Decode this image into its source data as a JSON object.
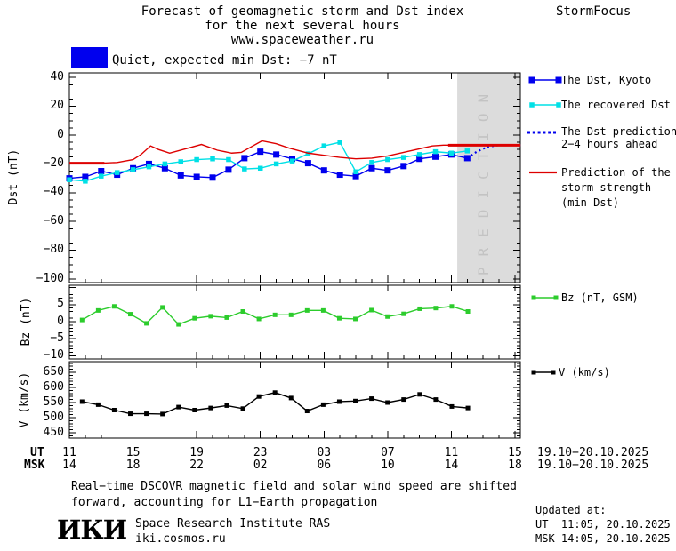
{
  "header": {
    "title_line1": "Forecast of geomagnetic storm and Dst index",
    "title_line2": "for the next several hours",
    "title_line3": "www.spaceweather.ru",
    "brand": "StormFocus"
  },
  "status": {
    "label": "Quiet, expected min Dst: −7 nT",
    "box_color": "#0000ee"
  },
  "colors": {
    "kyoto_blue": "#0000ee",
    "recovered_cyan": "#00e0e6",
    "prediction_red": "#dd0000",
    "bz_green": "#2ccc2c",
    "v_black": "#000000",
    "band_gray": "#dcdcdc",
    "band_text_gray": "#c3c3c3"
  },
  "legend_main": {
    "items": [
      {
        "label": "The Dst, Kyoto",
        "color": "#0000ee",
        "style": "line-squares"
      },
      {
        "label": "The recovered Dst",
        "color": "#00e0e6",
        "style": "line-squares"
      },
      {
        "label": "The Dst prediction",
        "label2": "2−4 hours ahead",
        "color": "#0000ee",
        "style": "dotted"
      },
      {
        "label": "Prediction of the",
        "label2": "storm strength",
        "label3": "(min Dst)",
        "color": "#dd0000",
        "style": "line"
      }
    ]
  },
  "xaxis": {
    "ut_label": "UT",
    "msk_label": "MSK",
    "tick_hours": [
      0,
      4,
      8,
      12,
      16,
      20,
      24,
      28
    ],
    "ut_values": [
      "11",
      "15",
      "19",
      "23",
      "03",
      "07",
      "11",
      "15"
    ],
    "msk_values": [
      "14",
      "18",
      "22",
      "02",
      "06",
      "10",
      "14",
      "18"
    ],
    "date_ut": "19.10−20.10.2025",
    "date_msk": "19.10−20.10.2025"
  },
  "chart_data": [
    {
      "name": "dst-panel",
      "type": "line",
      "ylabel": "Dst (nT)",
      "ylim": [
        -102,
        43
      ],
      "yticks": {
        "values": [
          40,
          20,
          0,
          -20,
          -40,
          -60,
          -80,
          -100
        ],
        "labels": [
          "40",
          "20",
          "0",
          "−20",
          "−40",
          "−60",
          "−80",
          "−100"
        ]
      },
      "prediction_band": {
        "label": "PREDICTION",
        "t_start": 24.37,
        "t_end": 28.34
      },
      "series": [
        {
          "name": "The Dst, Kyoto",
          "color": "#0000ee",
          "marker": "square",
          "marker_size": 7,
          "t0": 0,
          "dt": 1,
          "values": [
            -30,
            -29,
            -25,
            -27.5,
            -23,
            -20,
            -23,
            -28,
            -29,
            -29.5,
            -24,
            -16,
            -11.5,
            -13.5,
            -16.5,
            -19.5,
            -24.5,
            -27.5,
            -28.5,
            -23,
            -24.5,
            -21.5,
            -16.5,
            -15,
            -13.5,
            -16
          ]
        },
        {
          "name": "The recovered Dst",
          "color": "#00e0e6",
          "marker": "square",
          "marker_size": 5.5,
          "t0": 0,
          "dt": 1,
          "values": [
            -31,
            -32,
            -28.5,
            -26,
            -24,
            -22,
            -20,
            -18.5,
            -17,
            -16.5,
            -17,
            -23.5,
            -23,
            -20,
            -18,
            -13,
            -7.5,
            -5,
            -25.5,
            -19,
            -17,
            -15.5,
            -13.5,
            -11.5,
            -12.5,
            -11
          ]
        },
        {
          "name": "The Dst prediction 2−4 hours ahead",
          "color": "#0000ee",
          "style": "dotted",
          "points": [
            [
              25,
              -16
            ],
            [
              25.6,
              -11.5
            ],
            [
              26.3,
              -8
            ],
            [
              27,
              -7
            ],
            [
              28.34,
              -7
            ]
          ]
        },
        {
          "name": "Prediction of the storm strength (min Dst)",
          "color": "#dd0000",
          "style": "line",
          "points": [
            [
              0,
              -19.5
            ],
            [
              2,
              -19.5
            ],
            [
              3,
              -19
            ],
            [
              4,
              -17
            ],
            [
              4.5,
              -13.5
            ],
            [
              5.1,
              -7.5
            ],
            [
              5.6,
              -10
            ],
            [
              6.3,
              -12.5
            ],
            [
              7.3,
              -9.5
            ],
            [
              8.3,
              -6.5
            ],
            [
              9.3,
              -10.5
            ],
            [
              10.2,
              -12.5
            ],
            [
              10.8,
              -12
            ],
            [
              12.1,
              -4
            ],
            [
              13,
              -6
            ],
            [
              13.8,
              -9
            ],
            [
              15,
              -12.5
            ],
            [
              16,
              -14
            ],
            [
              17,
              -15.5
            ],
            [
              18,
              -16.5
            ],
            [
              19,
              -16
            ],
            [
              20,
              -14.5
            ],
            [
              21,
              -12
            ],
            [
              22,
              -9.5
            ],
            [
              22.8,
              -7.5
            ],
            [
              23.5,
              -7
            ],
            [
              28.34,
              -7
            ]
          ],
          "thick_lines": [
            {
              "t1": 0,
              "t2": 2.2,
              "v": -19.5
            },
            {
              "t1": 23.8,
              "t2": 28.34,
              "v": -7
            }
          ]
        }
      ]
    },
    {
      "name": "bz-panel",
      "type": "line",
      "ylabel": "Bz (nT)",
      "legend": "Bz (nT, GSM)",
      "ylim": [
        -11,
        10.8
      ],
      "yticks": {
        "values": [
          5,
          0,
          -5,
          -10
        ],
        "labels": [
          "5",
          "0",
          "−5",
          "−10"
        ]
      },
      "series": [
        {
          "name": "Bz (nT, GSM)",
          "color": "#2ccc2c",
          "marker": "square",
          "marker_size": 5,
          "t0": 0.8,
          "dt": 1.01,
          "values": [
            0.5,
            3.3,
            4.5,
            2.2,
            -0.5,
            4.2,
            -0.8,
            1.0,
            1.6,
            1.2,
            3.0,
            0.8,
            2.0,
            2.0,
            3.3,
            3.3,
            1.0,
            0.8,
            3.4,
            1.5,
            2.3,
            3.8,
            4.0,
            4.5,
            3.0
          ]
        }
      ]
    },
    {
      "name": "v-panel",
      "type": "line",
      "ylabel": "V (km/s)",
      "legend": "V (km/s)",
      "ylim": [
        432,
        685
      ],
      "yticks": {
        "values": [
          650,
          600,
          550,
          500,
          450
        ],
        "labels": [
          "650",
          "600",
          "550",
          "500",
          "450"
        ]
      },
      "series": [
        {
          "name": "V (km/s)",
          "color": "#000000",
          "marker": "square",
          "marker_size": 5,
          "t0": 0.8,
          "dt": 1.01,
          "values": [
            553,
            543,
            525,
            513,
            513,
            512,
            535,
            525,
            532,
            540,
            530,
            570,
            583,
            565,
            522,
            543,
            553,
            555,
            563,
            550,
            560,
            577,
            560,
            537,
            532
          ]
        }
      ]
    }
  ],
  "footer": {
    "note_line1": "Real−time DSCOVR magnetic field and solar wind speed are shifted",
    "note_line2": "forward, accounting for L1−Earth propagation",
    "logo": "ИКИ",
    "institute": "Space Research Institute RAS",
    "website": "iki.cosmos.ru",
    "updated_label": "Updated at:",
    "updated_ut": "UT  11:05, 20.10.2025",
    "updated_msk": "MSK 14:05, 20.10.2025"
  }
}
